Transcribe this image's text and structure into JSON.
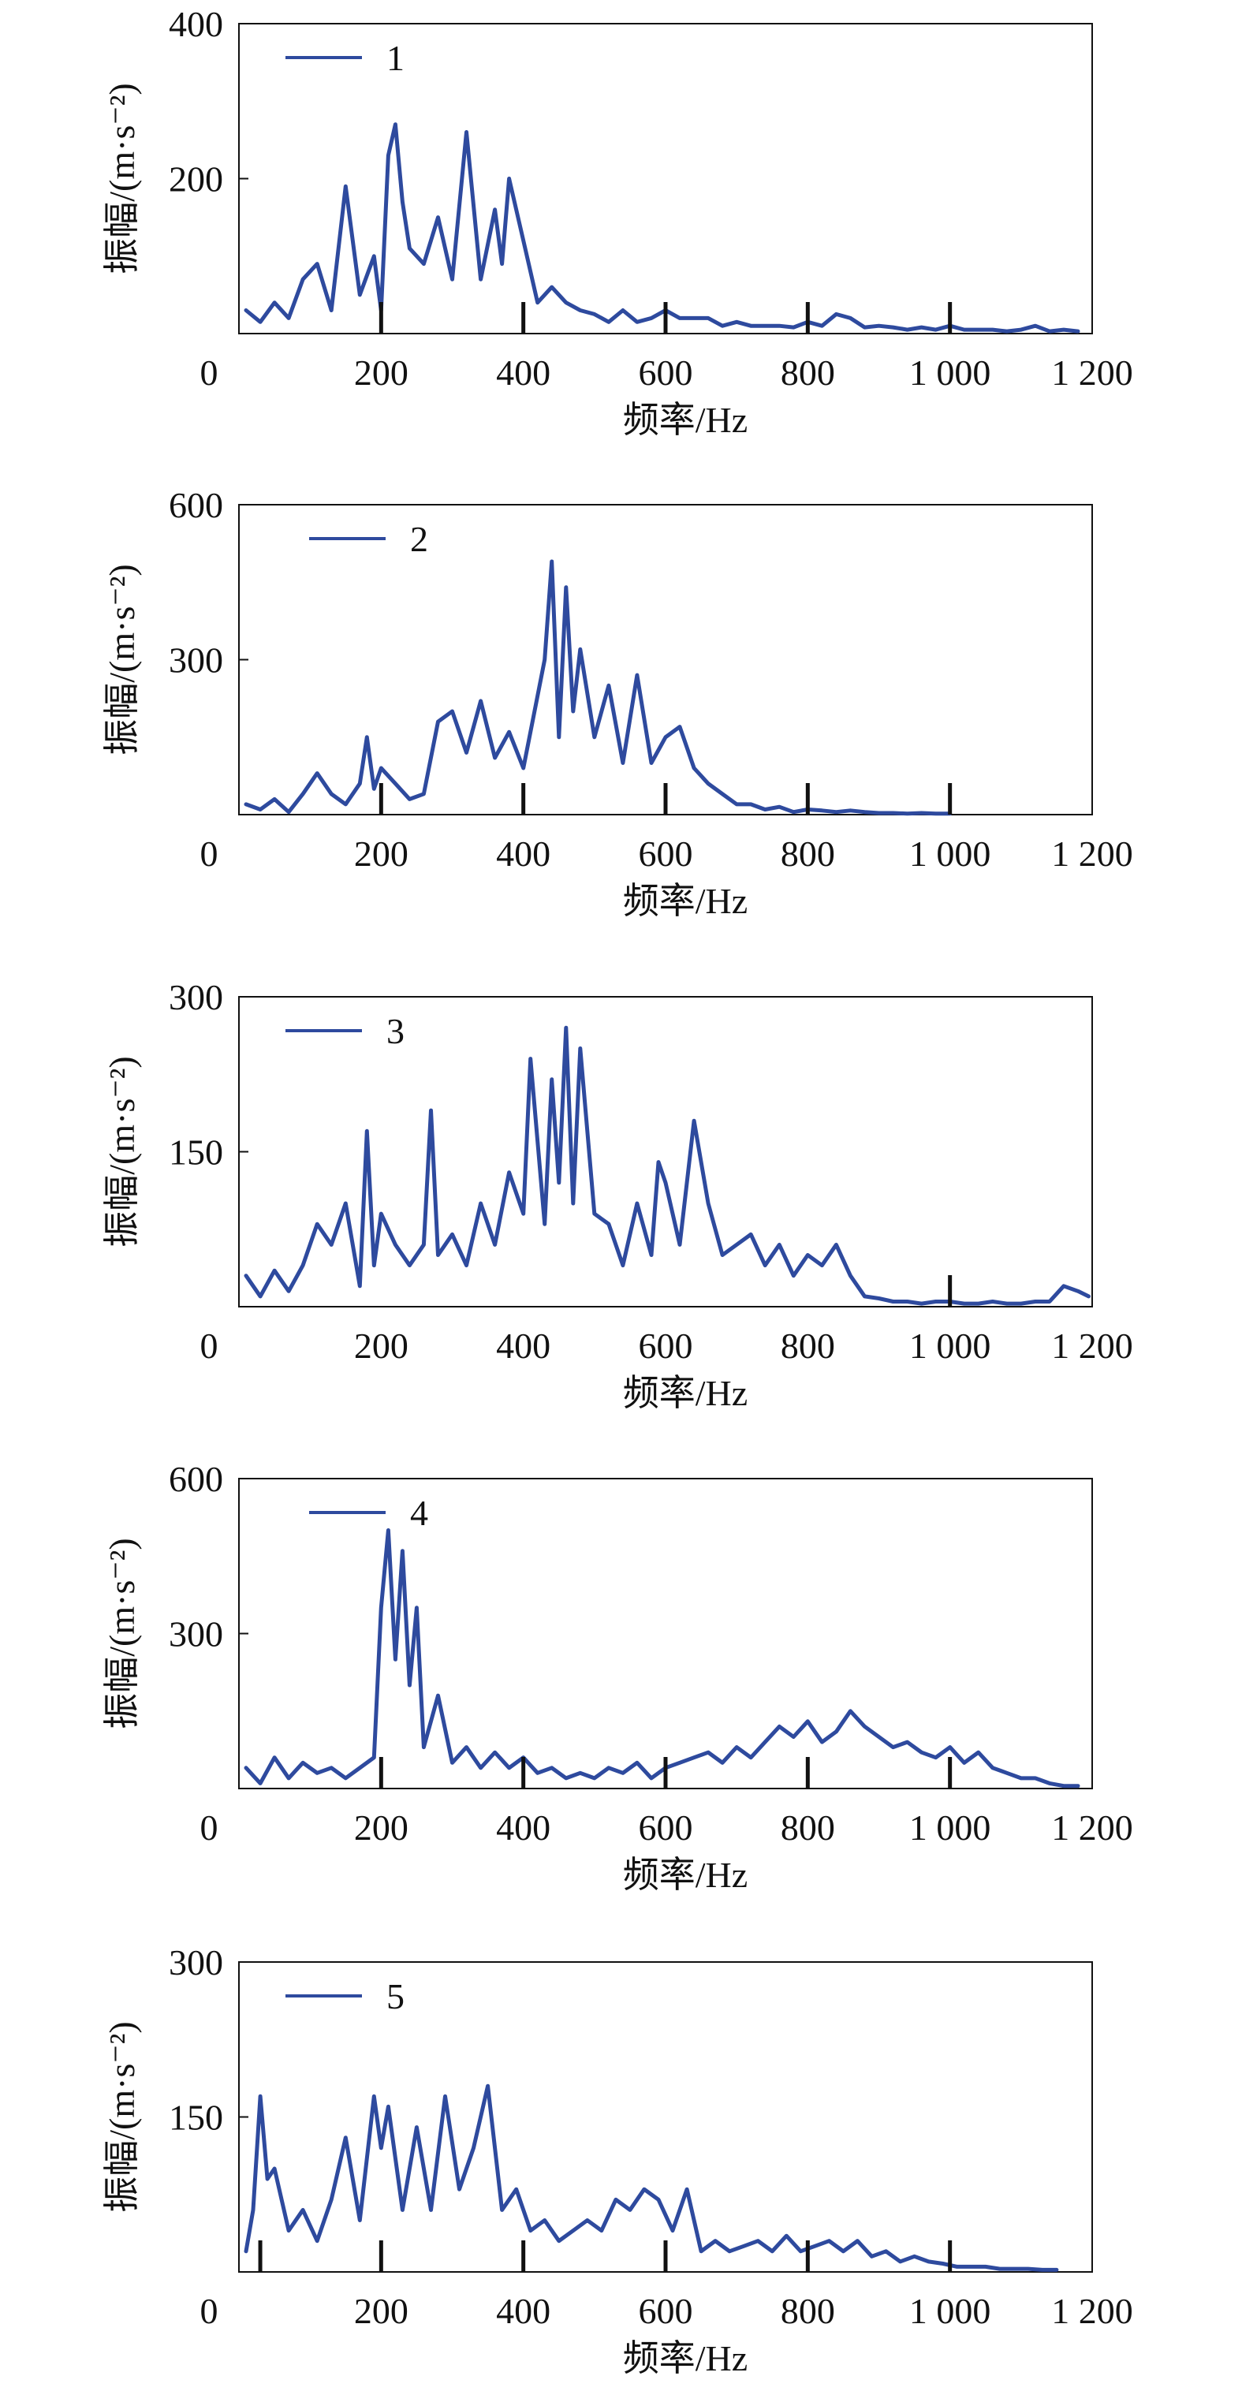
{
  "colors": {
    "series": "#2e4a9e",
    "axis": "#111111",
    "marker": "#111111",
    "background": "#ffffff"
  },
  "chart_data": [
    {
      "type": "line",
      "legend": "1",
      "legend_position": "top-left",
      "xlabel": "频率/Hz",
      "ylabel": "振幅/(m·s⁻²)",
      "xlim": [
        0,
        1200
      ],
      "ylim": [
        0,
        400
      ],
      "x_ticks": [
        0,
        200,
        400,
        600,
        800,
        1000,
        1200
      ],
      "x_tick_labels": [
        "0",
        "200",
        "400",
        "600",
        "800",
        "1 000",
        "1 200"
      ],
      "y_ticks": [
        200,
        400
      ],
      "y_tick_labels": [
        "200",
        "400"
      ],
      "markers": [
        200,
        400,
        600,
        800,
        1000
      ],
      "series": [
        {
          "name": "1",
          "x": [
            10,
            30,
            50,
            70,
            90,
            110,
            130,
            150,
            170,
            190,
            200,
            210,
            220,
            230,
            240,
            260,
            280,
            300,
            320,
            340,
            360,
            370,
            380,
            400,
            420,
            440,
            460,
            480,
            500,
            520,
            540,
            560,
            580,
            600,
            620,
            640,
            660,
            680,
            700,
            720,
            740,
            760,
            780,
            800,
            820,
            840,
            860,
            880,
            900,
            920,
            940,
            960,
            980,
            1000,
            1020,
            1040,
            1060,
            1080,
            1100,
            1120,
            1140,
            1160,
            1180
          ],
          "y": [
            30,
            15,
            40,
            20,
            70,
            90,
            30,
            190,
            50,
            100,
            30,
            230,
            270,
            170,
            110,
            90,
            150,
            70,
            260,
            70,
            160,
            90,
            200,
            120,
            40,
            60,
            40,
            30,
            25,
            15,
            30,
            15,
            20,
            30,
            20,
            20,
            20,
            10,
            15,
            10,
            10,
            10,
            8,
            15,
            10,
            25,
            20,
            8,
            10,
            8,
            5,
            8,
            5,
            10,
            5,
            5,
            5,
            3,
            5,
            10,
            3,
            5,
            3
          ]
        }
      ]
    },
    {
      "type": "line",
      "legend": "2",
      "legend_position": "top-left",
      "xlabel": "频率/Hz",
      "ylabel": "振幅/(m·s⁻²)",
      "xlim": [
        0,
        1200
      ],
      "ylim": [
        0,
        600
      ],
      "x_ticks": [
        0,
        200,
        400,
        600,
        800,
        1000,
        1200
      ],
      "x_tick_labels": [
        "0",
        "200",
        "400",
        "600",
        "800",
        "1 000",
        "1 200"
      ],
      "y_ticks": [
        300,
        600
      ],
      "y_tick_labels": [
        "300",
        "600"
      ],
      "markers": [
        200,
        400,
        600,
        800,
        1000
      ],
      "series": [
        {
          "name": "2",
          "x": [
            10,
            30,
            50,
            70,
            90,
            110,
            130,
            150,
            170,
            180,
            190,
            200,
            220,
            240,
            260,
            280,
            300,
            320,
            340,
            360,
            380,
            400,
            420,
            430,
            440,
            450,
            460,
            470,
            480,
            500,
            520,
            540,
            560,
            580,
            600,
            620,
            640,
            660,
            680,
            700,
            720,
            740,
            760,
            780,
            800,
            820,
            840,
            860,
            880,
            900,
            920,
            940,
            960,
            980,
            1000
          ],
          "y": [
            20,
            10,
            30,
            5,
            40,
            80,
            40,
            20,
            60,
            150,
            50,
            90,
            60,
            30,
            40,
            180,
            200,
            120,
            220,
            110,
            160,
            90,
            230,
            300,
            490,
            150,
            440,
            200,
            320,
            150,
            250,
            100,
            270,
            100,
            150,
            170,
            90,
            60,
            40,
            20,
            20,
            10,
            15,
            5,
            10,
            8,
            5,
            8,
            5,
            3,
            3,
            2,
            3,
            2,
            2
          ]
        }
      ]
    },
    {
      "type": "line",
      "legend": "3",
      "legend_position": "top-left",
      "xlabel": "频率/Hz",
      "ylabel": "振幅/(m·s⁻²)",
      "xlim": [
        0,
        1200
      ],
      "ylim": [
        0,
        300
      ],
      "x_ticks": [
        0,
        200,
        400,
        600,
        800,
        1000,
        1200
      ],
      "x_tick_labels": [
        "0",
        "200",
        "400",
        "600",
        "800",
        "1 000",
        "1 200"
      ],
      "y_ticks": [
        150,
        300
      ],
      "y_tick_labels": [
        "150",
        "300"
      ],
      "markers": [
        1000
      ],
      "series": [
        {
          "name": "3",
          "x": [
            10,
            30,
            50,
            70,
            90,
            110,
            130,
            150,
            170,
            180,
            190,
            200,
            220,
            240,
            260,
            270,
            280,
            300,
            320,
            340,
            360,
            380,
            400,
            410,
            420,
            430,
            440,
            450,
            460,
            470,
            480,
            500,
            520,
            540,
            560,
            580,
            590,
            600,
            620,
            640,
            660,
            680,
            700,
            720,
            740,
            760,
            780,
            800,
            820,
            840,
            860,
            880,
            900,
            920,
            940,
            960,
            980,
            1000,
            1020,
            1040,
            1060,
            1080,
            1100,
            1120,
            1140,
            1160,
            1180,
            1195
          ],
          "y": [
            30,
            10,
            35,
            15,
            40,
            80,
            60,
            100,
            20,
            170,
            40,
            90,
            60,
            40,
            60,
            190,
            50,
            70,
            40,
            100,
            60,
            130,
            90,
            240,
            160,
            80,
            220,
            120,
            270,
            100,
            250,
            90,
            80,
            40,
            100,
            50,
            140,
            120,
            60,
            180,
            100,
            50,
            60,
            70,
            40,
            60,
            30,
            50,
            40,
            60,
            30,
            10,
            8,
            5,
            5,
            3,
            5,
            5,
            3,
            3,
            5,
            3,
            3,
            5,
            5,
            20,
            15,
            10
          ]
        }
      ]
    },
    {
      "type": "line",
      "legend": "4",
      "legend_position": "top-left",
      "xlabel": "频率/Hz",
      "ylabel": "振幅/(m·s⁻²)",
      "xlim": [
        0,
        1200
      ],
      "ylim": [
        0,
        600
      ],
      "x_ticks": [
        0,
        200,
        400,
        600,
        800,
        1000,
        1200
      ],
      "x_tick_labels": [
        "0",
        "200",
        "400",
        "600",
        "800",
        "1 000",
        "1 200"
      ],
      "y_ticks": [
        300,
        600
      ],
      "y_tick_labels": [
        "300",
        "600"
      ],
      "markers": [
        200,
        400,
        600,
        800,
        1000
      ],
      "series": [
        {
          "name": "4",
          "x": [
            10,
            30,
            50,
            70,
            90,
            110,
            130,
            150,
            170,
            190,
            200,
            210,
            220,
            230,
            240,
            250,
            260,
            280,
            300,
            320,
            340,
            360,
            380,
            400,
            420,
            440,
            460,
            480,
            500,
            520,
            540,
            560,
            580,
            600,
            620,
            640,
            660,
            680,
            700,
            720,
            740,
            760,
            780,
            800,
            820,
            840,
            860,
            880,
            900,
            920,
            940,
            960,
            980,
            1000,
            1020,
            1040,
            1060,
            1080,
            1100,
            1120,
            1140,
            1160,
            1180
          ],
          "y": [
            40,
            10,
            60,
            20,
            50,
            30,
            40,
            20,
            40,
            60,
            350,
            500,
            250,
            460,
            200,
            350,
            80,
            180,
            50,
            80,
            40,
            70,
            40,
            60,
            30,
            40,
            20,
            30,
            20,
            40,
            30,
            50,
            20,
            40,
            50,
            60,
            70,
            50,
            80,
            60,
            90,
            120,
            100,
            130,
            90,
            110,
            150,
            120,
            100,
            80,
            90,
            70,
            60,
            80,
            50,
            70,
            40,
            30,
            20,
            20,
            10,
            5,
            5
          ]
        }
      ]
    },
    {
      "type": "line",
      "legend": "5",
      "legend_position": "top-left",
      "xlabel": "频率/Hz",
      "ylabel": "振幅/(m·s⁻²)",
      "xlim": [
        0,
        1200
      ],
      "ylim": [
        0,
        300
      ],
      "x_ticks": [
        0,
        200,
        400,
        600,
        800,
        1000,
        1200
      ],
      "x_tick_labels": [
        "0",
        "200",
        "400",
        "600",
        "800",
        "1 000",
        "1 200"
      ],
      "y_ticks": [
        150,
        300
      ],
      "y_tick_labels": [
        "150",
        "300"
      ],
      "markers": [
        30,
        200,
        400,
        600,
        800,
        1000
      ],
      "series": [
        {
          "name": "5",
          "x": [
            10,
            20,
            30,
            40,
            50,
            70,
            90,
            110,
            130,
            150,
            170,
            190,
            200,
            210,
            230,
            250,
            270,
            290,
            310,
            330,
            350,
            370,
            390,
            410,
            430,
            450,
            470,
            490,
            510,
            530,
            550,
            570,
            590,
            610,
            630,
            650,
            670,
            690,
            710,
            730,
            750,
            770,
            790,
            810,
            830,
            850,
            870,
            890,
            910,
            930,
            950,
            970,
            990,
            1010,
            1030,
            1050,
            1070,
            1090,
            1110,
            1130,
            1150
          ],
          "y": [
            20,
            60,
            170,
            90,
            100,
            40,
            60,
            30,
            70,
            130,
            50,
            170,
            120,
            160,
            60,
            140,
            60,
            170,
            80,
            120,
            180,
            60,
            80,
            40,
            50,
            30,
            40,
            50,
            40,
            70,
            60,
            80,
            70,
            40,
            80,
            20,
            30,
            20,
            25,
            30,
            20,
            35,
            20,
            25,
            30,
            20,
            30,
            15,
            20,
            10,
            15,
            10,
            8,
            5,
            5,
            5,
            3,
            3,
            3,
            2,
            2
          ]
        }
      ]
    }
  ]
}
